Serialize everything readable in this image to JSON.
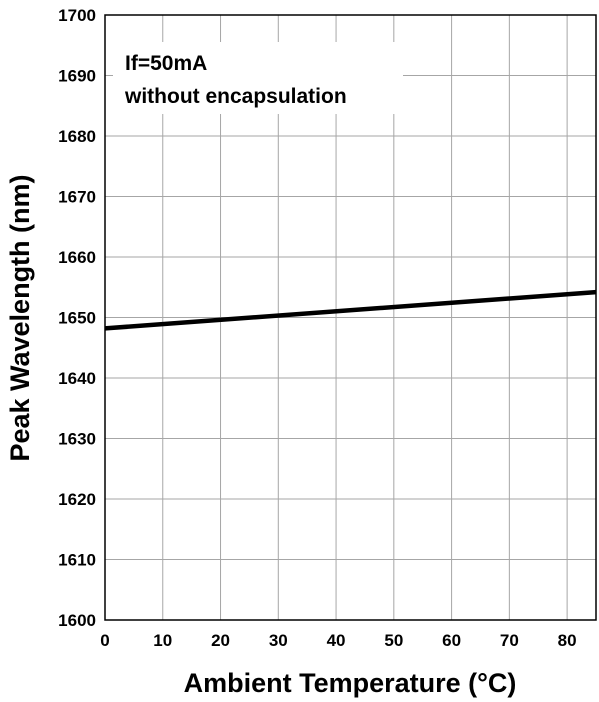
{
  "chart_data": {
    "type": "line",
    "title": "",
    "xlabel": "Ambient Temperature (°C)",
    "ylabel": "Peak Wavelength (nm)",
    "xlim": [
      0,
      85
    ],
    "ylim": [
      1600,
      1700
    ],
    "x_ticks": [
      0,
      10,
      20,
      30,
      40,
      50,
      60,
      70,
      80
    ],
    "y_ticks": [
      1600,
      1610,
      1620,
      1630,
      1640,
      1650,
      1660,
      1670,
      1680,
      1690,
      1700
    ],
    "grid": true,
    "annotations": [
      "If=50mA",
      "without encapsulation"
    ],
    "series": [
      {
        "x": [
          0,
          85
        ],
        "y": [
          1648.2,
          1654.2
        ]
      }
    ]
  },
  "colors": {
    "line": "#000000",
    "grid": "#a6a6a6",
    "frame": "#000000"
  }
}
